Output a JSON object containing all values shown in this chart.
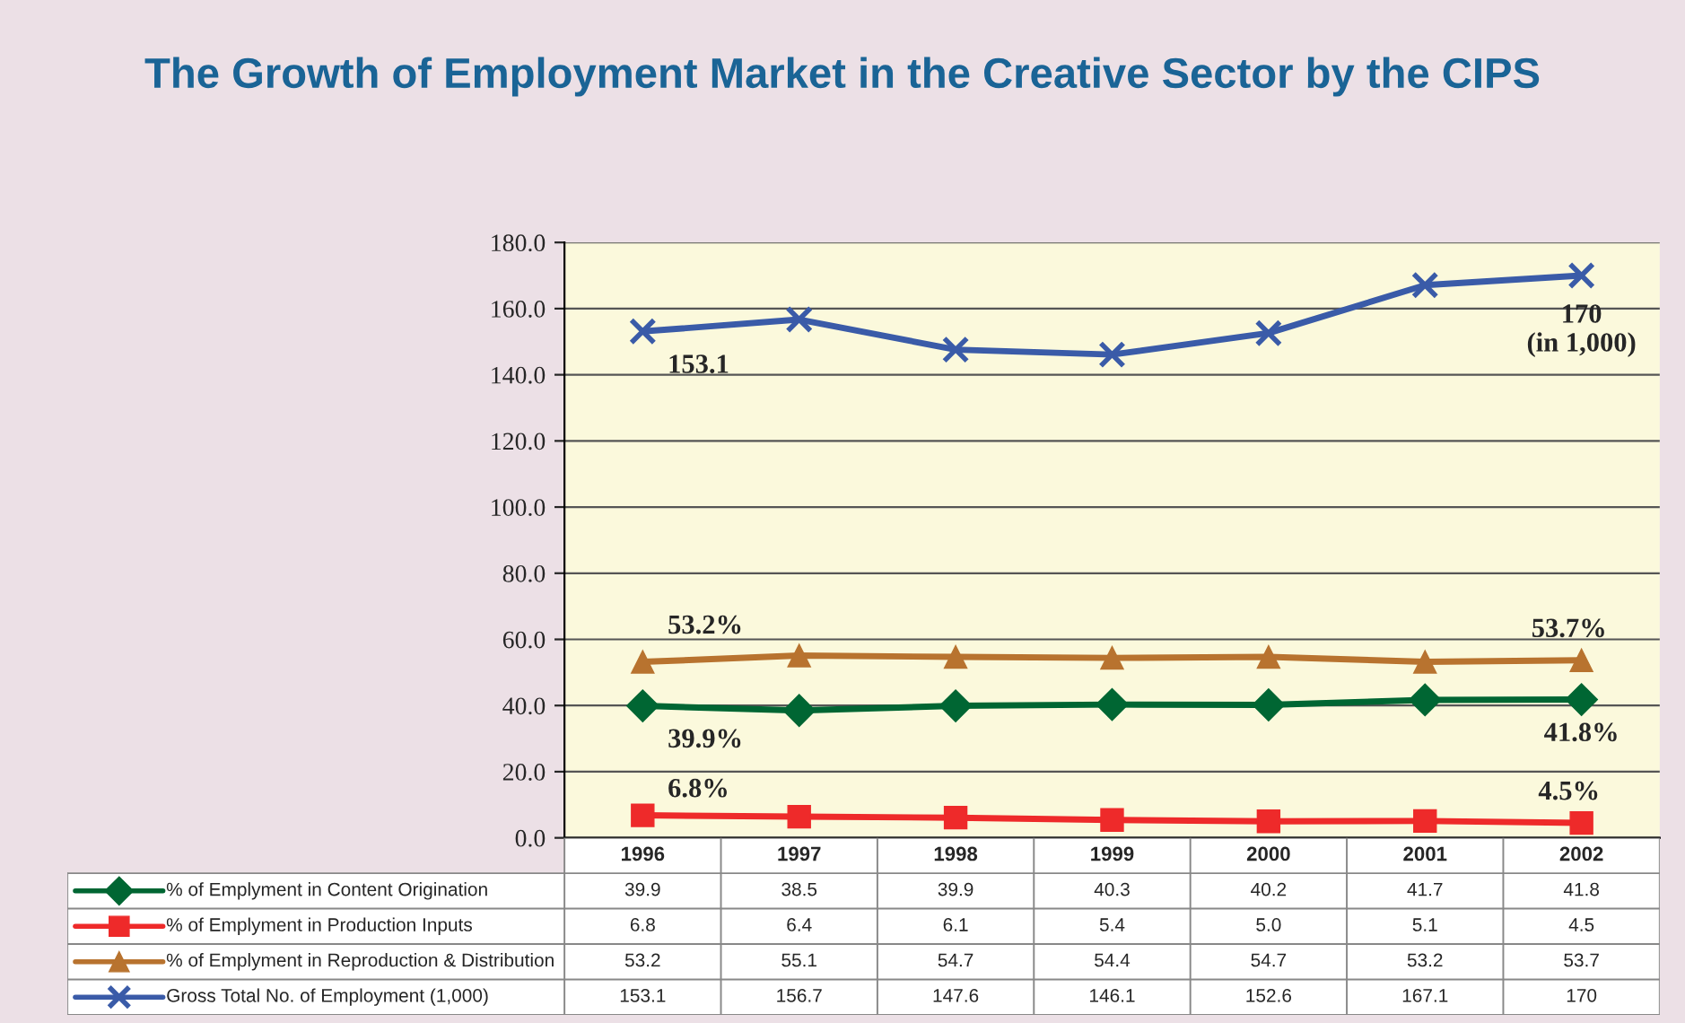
{
  "chart_data": {
    "type": "line",
    "title": "The Growth of Employment Market in the Creative Sector by the CIPS",
    "categories": [
      "1996",
      "1997",
      "1998",
      "1999",
      "2000",
      "2001",
      "2002"
    ],
    "series": [
      {
        "name": "% of Emplyment in Content Origination",
        "color": "#006633",
        "marker": "diamond",
        "values": [
          39.9,
          38.5,
          39.9,
          40.3,
          40.2,
          41.7,
          41.8
        ],
        "value_labels": [
          "39.9",
          "38.5",
          "39.9",
          "40.3",
          "40.2",
          "41.7",
          "41.8"
        ]
      },
      {
        "name": "% of Emplyment in Production Inputs",
        "color": "#ee2a2a",
        "marker": "square",
        "values": [
          6.8,
          6.4,
          6.1,
          5.4,
          5.0,
          5.1,
          4.5
        ],
        "value_labels": [
          "6.8",
          "6.4",
          "6.1",
          "5.4",
          "5.0",
          "5.1",
          "4.5"
        ]
      },
      {
        "name": "% of Emplyment in Reproduction & Distribution",
        "color": "#b8732f",
        "marker": "triangle",
        "values": [
          53.2,
          55.1,
          54.7,
          54.4,
          54.7,
          53.2,
          53.7
        ],
        "value_labels": [
          "53.2",
          "55.1",
          "54.7",
          "54.4",
          "54.7",
          "53.2",
          "53.7"
        ]
      },
      {
        "name": "Gross Total No. of Employment (1,000)",
        "color": "#3a5ba8",
        "marker": "cross",
        "values": [
          153.1,
          156.7,
          147.6,
          146.1,
          152.6,
          167.1,
          170
        ],
        "value_labels": [
          "153.1",
          "156.7",
          "147.6",
          "146.1",
          "152.6",
          "167.1",
          "170"
        ]
      }
    ],
    "ylim": [
      0,
      180
    ],
    "yticks": [
      {
        "value": 0,
        "label": "0.0"
      },
      {
        "value": 20,
        "label": "20.0"
      },
      {
        "value": 40,
        "label": "40.0"
      },
      {
        "value": 60,
        "label": "60.0"
      },
      {
        "value": 80,
        "label": "80.0"
      },
      {
        "value": 100,
        "label": "100.0"
      },
      {
        "value": 120,
        "label": "120.0"
      },
      {
        "value": 140,
        "label": "140.0"
      },
      {
        "value": 160,
        "label": "160.0"
      },
      {
        "value": 180,
        "label": "180.0"
      }
    ],
    "grid": "y",
    "tick_labels": "y",
    "legend": "bottom",
    "line_style": "solid",
    "annotations": [
      {
        "text": "153.1",
        "x": "1996",
        "y": 153.1
      },
      {
        "text": "170\n(in 1,000)",
        "x": "2002",
        "y": 170
      },
      {
        "text": "53.2%",
        "x": "1996",
        "y": 53.2
      },
      {
        "text": "53.7%",
        "x": "2002",
        "y": 53.7
      },
      {
        "text": "39.9%",
        "x": "1996",
        "y": 39.9
      },
      {
        "text": "41.8%",
        "x": "2002",
        "y": 41.8
      },
      {
        "text": "6.8%",
        "x": "1996",
        "y": 6.8
      },
      {
        "text": "4.5%",
        "x": "2002",
        "y": 4.5
      }
    ]
  }
}
